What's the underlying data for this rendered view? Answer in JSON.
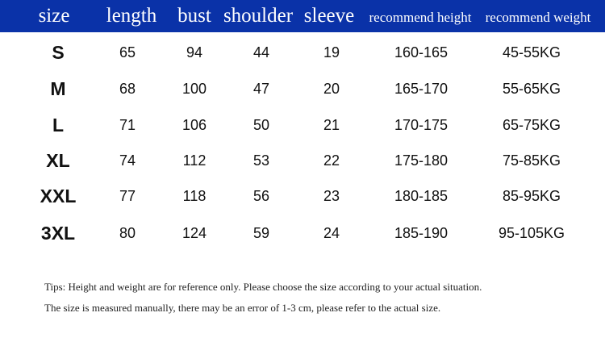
{
  "header_color": "#0a32a8",
  "columns": [
    "size",
    "length",
    "bust",
    "shoulder",
    "sleeve",
    "recommend height",
    "recommend weight"
  ],
  "rows": [
    [
      "S",
      "65",
      "94",
      "44",
      "19",
      "160-165",
      "45-55KG"
    ],
    [
      "M",
      "68",
      "100",
      "47",
      "20",
      "165-170",
      "55-65KG"
    ],
    [
      "L",
      "71",
      "106",
      "50",
      "21",
      "170-175",
      "65-75KG"
    ],
    [
      "XL",
      "74",
      "112",
      "53",
      "22",
      "175-180",
      "75-85KG"
    ],
    [
      "XXL",
      "77",
      "118",
      "56",
      "23",
      "180-185",
      "85-95KG"
    ],
    [
      "3XL",
      "80",
      "124",
      "59",
      "24",
      "185-190",
      "95-105KG"
    ]
  ],
  "tips": [
    "Tips: Height and weight are for reference only. Please choose the size according to your actual situation.",
    "The size is measured manually, there may be an error of 1-3 cm, please refer to the actual size."
  ]
}
